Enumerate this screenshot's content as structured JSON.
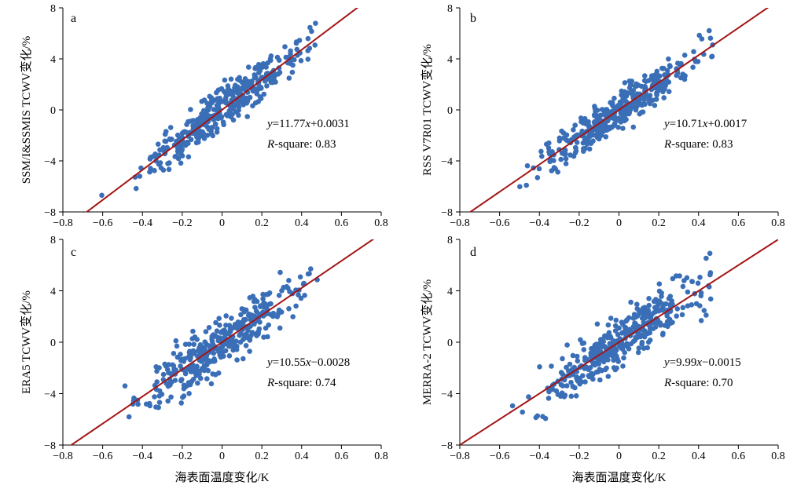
{
  "colors": {
    "points": "#3a6fb7",
    "fit_line": "#a31515",
    "axes": "#000000"
  },
  "chart_data": [
    {
      "type": "scatter",
      "panel": "a",
      "ylabel": "SSM/I&SSMIS TCWV变化/%",
      "xlabel": "",
      "xlim": [
        -0.8,
        0.8
      ],
      "ylim": [
        -8,
        8
      ],
      "xticks": [
        "−0.8",
        "−0.6",
        "−0.4",
        "−0.2",
        "0",
        "0.2",
        "0.4",
        "0.6",
        "0.8"
      ],
      "yticks": [
        "−8",
        "−4",
        "0",
        "4",
        "8"
      ],
      "equation": "y=11.77x+0.0031",
      "eq_prefix": "y",
      "eq_mid": "=11.77",
      "eq_var": "x",
      "eq_tail": "+0.0031",
      "rsq_var": "R",
      "rsq_rest": "-square: 0.83",
      "fit": {
        "slope": 11.77,
        "intercept": 0.0031
      },
      "spread": 1.3,
      "seed": 11
    },
    {
      "type": "scatter",
      "panel": "b",
      "ylabel": "RSS V7R01 TCWV变化/%",
      "xlabel": "",
      "xlim": [
        -0.8,
        0.8
      ],
      "ylim": [
        -8,
        8
      ],
      "xticks": [
        "−0.8",
        "−0.6",
        "−0.4",
        "−0.2",
        "0",
        "0.2",
        "0.4",
        "0.6",
        "0.8"
      ],
      "yticks": [
        "−8",
        "−4",
        "0",
        "4",
        "8"
      ],
      "eq_prefix": "y",
      "eq_mid": "=10.71",
      "eq_var": "x",
      "eq_tail": "+0.0017",
      "rsq_var": "R",
      "rsq_rest": "-square: 0.83",
      "fit": {
        "slope": 10.71,
        "intercept": 0.0017
      },
      "spread": 1.2,
      "seed": 23
    },
    {
      "type": "scatter",
      "panel": "c",
      "ylabel": "ERA5 TCWV变化/%",
      "xlabel": "海表面温度变化/K",
      "xlim": [
        -0.8,
        0.8
      ],
      "ylim": [
        -8,
        8
      ],
      "xticks": [
        "−0.8",
        "−0.6",
        "−0.4",
        "−0.2",
        "0",
        "0.2",
        "0.4",
        "0.6",
        "0.8"
      ],
      "yticks": [
        "−8",
        "−4",
        "0",
        "4",
        "8"
      ],
      "eq_prefix": "y",
      "eq_mid": "=10.55",
      "eq_var": "x",
      "eq_tail": "−0.0028",
      "rsq_var": "R",
      "rsq_rest": "-square: 0.74",
      "fit": {
        "slope": 10.55,
        "intercept": -0.0028
      },
      "spread": 1.6,
      "seed": 37
    },
    {
      "type": "scatter",
      "panel": "d",
      "ylabel": "MERRA-2 TCWV变化/%",
      "xlabel": "海表面温度变化/K",
      "xlim": [
        -0.8,
        0.8
      ],
      "ylim": [
        -8,
        8
      ],
      "xticks": [
        "−0.8",
        "−0.6",
        "−0.4",
        "−0.2",
        "0",
        "0.2",
        "0.4",
        "0.6",
        "0.8"
      ],
      "yticks": [
        "−8",
        "−4",
        "0",
        "4",
        "8"
      ],
      "eq_prefix": "y",
      "eq_mid": "=9.99",
      "eq_var": "x",
      "eq_tail": "−0.0015",
      "rsq_var": "R",
      "rsq_rest": "-square: 0.70",
      "fit": {
        "slope": 9.99,
        "intercept": -0.0015
      },
      "spread": 1.7,
      "seed": 51
    }
  ]
}
